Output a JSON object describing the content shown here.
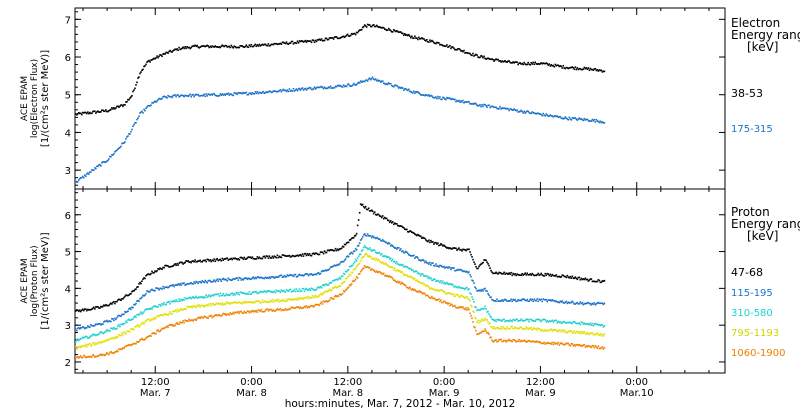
{
  "chart_data": [
    {
      "type": "line",
      "panel": "electron",
      "ylabel_lines": [
        "ACE EPAM",
        "log(Electron Flux)",
        "[1/(cm²s ster MeV)]"
      ],
      "ylim": [
        2.5,
        7.3
      ],
      "yticks": [
        3,
        4,
        5,
        6,
        7
      ],
      "legend_title_lines": [
        "Electron",
        "Energy range",
        "[keV]"
      ],
      "series": [
        {
          "name": "38-53",
          "color": "#000000",
          "points": [
            [
              0,
              4.5
            ],
            [
              2,
              4.55
            ],
            [
              4,
              4.6
            ],
            [
              6,
              4.75
            ],
            [
              7,
              5.0
            ],
            [
              8,
              5.6
            ],
            [
              9,
              5.9
            ],
            [
              10,
              6.0
            ],
            [
              11,
              6.1
            ],
            [
              13,
              6.25
            ],
            [
              15,
              6.3
            ],
            [
              18,
              6.3
            ],
            [
              21,
              6.3
            ],
            [
              24,
              6.35
            ],
            [
              27,
              6.4
            ],
            [
              30,
              6.45
            ],
            [
              33,
              6.55
            ],
            [
              35,
              6.65
            ],
            [
              36,
              6.85
            ],
            [
              37,
              6.85
            ],
            [
              39,
              6.75
            ],
            [
              42,
              6.55
            ],
            [
              45,
              6.4
            ],
            [
              48,
              6.2
            ],
            [
              50,
              6.05
            ],
            [
              52,
              5.95
            ],
            [
              55,
              5.85
            ],
            [
              58,
              5.85
            ],
            [
              61,
              5.75
            ],
            [
              64,
              5.7
            ],
            [
              66,
              5.65
            ]
          ]
        },
        {
          "name": "175-315",
          "color": "#1a73c8",
          "points": [
            [
              0,
              2.7
            ],
            [
              2,
              3.0
            ],
            [
              4,
              3.3
            ],
            [
              6,
              3.75
            ],
            [
              7,
              4.1
            ],
            [
              8,
              4.5
            ],
            [
              9,
              4.7
            ],
            [
              10,
              4.85
            ],
            [
              11,
              4.95
            ],
            [
              13,
              5.0
            ],
            [
              15,
              5.0
            ],
            [
              18,
              5.02
            ],
            [
              21,
              5.05
            ],
            [
              24,
              5.1
            ],
            [
              27,
              5.15
            ],
            [
              30,
              5.2
            ],
            [
              33,
              5.25
            ],
            [
              35,
              5.3
            ],
            [
              36,
              5.4
            ],
            [
              37,
              5.45
            ],
            [
              39,
              5.3
            ],
            [
              42,
              5.1
            ],
            [
              45,
              4.95
            ],
            [
              48,
              4.85
            ],
            [
              50,
              4.75
            ],
            [
              52,
              4.7
            ],
            [
              55,
              4.6
            ],
            [
              58,
              4.5
            ],
            [
              61,
              4.4
            ],
            [
              64,
              4.35
            ],
            [
              66,
              4.3
            ]
          ]
        }
      ]
    },
    {
      "type": "line",
      "panel": "proton",
      "ylabel_lines": [
        "ACE EPAM",
        "log(Proton Flux)",
        "[1/(cm²s ster MeV)]"
      ],
      "ylim": [
        1.7,
        6.7
      ],
      "yticks": [
        2,
        3,
        4,
        5,
        6
      ],
      "legend_title_lines": [
        "Proton",
        "Energy range",
        "[keV]"
      ],
      "x_tick_labels": [
        {
          "hour": 12,
          "time": "12:00",
          "date": "Mar. 7"
        },
        {
          "hour": 24,
          "time": "0:00",
          "date": "Mar. 8"
        },
        {
          "hour": 36,
          "time": "12:00",
          "date": "Mar. 8"
        },
        {
          "hour": 48,
          "time": "0:00",
          "date": "Mar. 9"
        },
        {
          "hour": 60,
          "time": "12:00",
          "date": "Mar. 9"
        },
        {
          "hour": 72,
          "time": "0:00",
          "date": "Mar.10"
        }
      ],
      "xlabel": "hours:minutes, Mar.  7, 2012 - Mar. 10, 2012",
      "series": [
        {
          "name": "47-68",
          "color": "#000000",
          "points": [
            [
              0,
              3.4
            ],
            [
              3,
              3.5
            ],
            [
              5,
              3.65
            ],
            [
              7,
              3.9
            ],
            [
              9,
              4.4
            ],
            [
              11,
              4.6
            ],
            [
              14,
              4.75
            ],
            [
              18,
              4.8
            ],
            [
              22,
              4.85
            ],
            [
              26,
              4.9
            ],
            [
              30,
              4.95
            ],
            [
              33,
              5.1
            ],
            [
              35,
              5.5
            ],
            [
              35.5,
              6.3
            ],
            [
              37,
              6.1
            ],
            [
              40,
              5.75
            ],
            [
              44,
              5.3
            ],
            [
              47,
              5.1
            ],
            [
              49,
              5.05
            ],
            [
              50,
              4.55
            ],
            [
              51,
              4.8
            ],
            [
              52,
              4.45
            ],
            [
              55,
              4.4
            ],
            [
              58,
              4.4
            ],
            [
              61,
              4.35
            ],
            [
              64,
              4.25
            ],
            [
              66,
              4.2
            ]
          ]
        },
        {
          "name": "115-195",
          "color": "#1a73c8",
          "points": [
            [
              0,
              2.9
            ],
            [
              3,
              3.05
            ],
            [
              5,
              3.2
            ],
            [
              7,
              3.5
            ],
            [
              9,
              3.95
            ],
            [
              11,
              4.05
            ],
            [
              14,
              4.15
            ],
            [
              18,
              4.25
            ],
            [
              22,
              4.3
            ],
            [
              26,
              4.35
            ],
            [
              30,
              4.4
            ],
            [
              33,
              4.7
            ],
            [
              35,
              5.1
            ],
            [
              36,
              5.5
            ],
            [
              38,
              5.35
            ],
            [
              41,
              5.0
            ],
            [
              44,
              4.7
            ],
            [
              47,
              4.55
            ],
            [
              49,
              4.45
            ],
            [
              50,
              3.95
            ],
            [
              51,
              4.0
            ],
            [
              52,
              3.7
            ],
            [
              55,
              3.7
            ],
            [
              58,
              3.7
            ],
            [
              61,
              3.65
            ],
            [
              64,
              3.6
            ],
            [
              66,
              3.6
            ]
          ]
        },
        {
          "name": "310-580",
          "color": "#20d0d0",
          "points": [
            [
              0,
              2.6
            ],
            [
              3,
              2.8
            ],
            [
              5,
              2.95
            ],
            [
              7,
              3.2
            ],
            [
              9,
              3.45
            ],
            [
              11,
              3.6
            ],
            [
              14,
              3.75
            ],
            [
              18,
              3.85
            ],
            [
              22,
              3.9
            ],
            [
              26,
              3.95
            ],
            [
              30,
              4.0
            ],
            [
              33,
              4.3
            ],
            [
              35,
              4.8
            ],
            [
              36,
              5.15
            ],
            [
              38,
              4.95
            ],
            [
              41,
              4.6
            ],
            [
              44,
              4.3
            ],
            [
              47,
              4.1
            ],
            [
              49,
              4.0
            ],
            [
              50,
              3.4
            ],
            [
              51,
              3.5
            ],
            [
              52,
              3.15
            ],
            [
              55,
              3.15
            ],
            [
              58,
              3.15
            ],
            [
              61,
              3.1
            ],
            [
              64,
              3.05
            ],
            [
              66,
              3.0
            ]
          ]
        },
        {
          "name": "795-1193",
          "color": "#e0e000",
          "points": [
            [
              0,
              2.4
            ],
            [
              3,
              2.55
            ],
            [
              5,
              2.7
            ],
            [
              7,
              2.9
            ],
            [
              9,
              3.15
            ],
            [
              11,
              3.3
            ],
            [
              14,
              3.5
            ],
            [
              18,
              3.6
            ],
            [
              22,
              3.65
            ],
            [
              26,
              3.7
            ],
            [
              30,
              3.8
            ],
            [
              33,
              4.1
            ],
            [
              35,
              4.6
            ],
            [
              36,
              4.95
            ],
            [
              38,
              4.75
            ],
            [
              41,
              4.4
            ],
            [
              44,
              4.05
            ],
            [
              47,
              3.85
            ],
            [
              49,
              3.75
            ],
            [
              50,
              3.1
            ],
            [
              51,
              3.2
            ],
            [
              52,
              2.95
            ],
            [
              55,
              2.95
            ],
            [
              58,
              2.9
            ],
            [
              61,
              2.85
            ],
            [
              64,
              2.8
            ],
            [
              66,
              2.75
            ]
          ]
        },
        {
          "name": "1060-1900",
          "color": "#f08000",
          "points": [
            [
              0,
              2.15
            ],
            [
              3,
              2.2
            ],
            [
              5,
              2.3
            ],
            [
              7,
              2.5
            ],
            [
              9,
              2.7
            ],
            [
              11,
              2.95
            ],
            [
              14,
              3.15
            ],
            [
              18,
              3.3
            ],
            [
              22,
              3.4
            ],
            [
              26,
              3.45
            ],
            [
              30,
              3.55
            ],
            [
              33,
              3.85
            ],
            [
              35,
              4.3
            ],
            [
              36,
              4.6
            ],
            [
              38,
              4.45
            ],
            [
              41,
              4.1
            ],
            [
              44,
              3.8
            ],
            [
              47,
              3.55
            ],
            [
              49,
              3.45
            ],
            [
              50,
              2.75
            ],
            [
              51,
              2.9
            ],
            [
              52,
              2.6
            ],
            [
              55,
              2.6
            ],
            [
              58,
              2.55
            ],
            [
              61,
              2.5
            ],
            [
              64,
              2.45
            ],
            [
              66,
              2.4
            ]
          ]
        }
      ]
    }
  ]
}
